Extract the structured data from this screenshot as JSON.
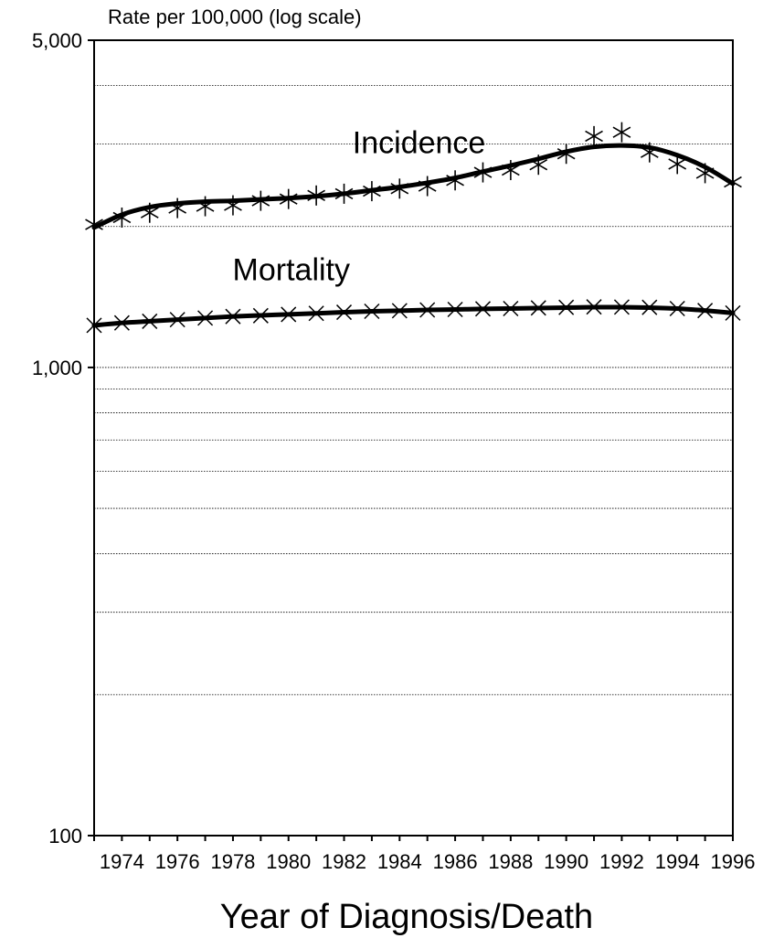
{
  "chart_data": {
    "type": "line",
    "ylabel": "Rate per 100,000 (log scale)",
    "xlabel": "Year of Diagnosis/Death",
    "y_scale": "log",
    "ylim": [
      100,
      5000
    ],
    "xlim": [
      1973,
      1996
    ],
    "y_tick_values": [
      100,
      1000,
      5000
    ],
    "y_tick_labels": [
      "100",
      "1,000",
      "5,000"
    ],
    "gridlines_y": [
      200,
      300,
      400,
      500,
      600,
      700,
      800,
      900,
      1000,
      2000,
      3000,
      4000
    ],
    "x_tick_labels": [
      "1974",
      "1976",
      "1978",
      "1980",
      "1982",
      "1984",
      "1986",
      "1988",
      "1990",
      "1992",
      "1994",
      "1996"
    ],
    "x": [
      1973,
      1974,
      1975,
      1976,
      1977,
      1978,
      1979,
      1980,
      1981,
      1982,
      1983,
      1984,
      1985,
      1986,
      1987,
      1988,
      1989,
      1990,
      1991,
      1992,
      1993,
      1994,
      1995,
      1996
    ],
    "series": [
      {
        "name": "Incidence",
        "marker": "asterisk",
        "values": [
          2020,
          2090,
          2140,
          2190,
          2210,
          2220,
          2270,
          2290,
          2330,
          2350,
          2380,
          2410,
          2440,
          2510,
          2610,
          2640,
          2710,
          2860,
          3120,
          3180,
          2880,
          2720,
          2600,
          2490
        ],
        "trend": [
          1990,
          2120,
          2200,
          2240,
          2260,
          2270,
          2285,
          2300,
          2320,
          2350,
          2390,
          2430,
          2480,
          2540,
          2620,
          2700,
          2790,
          2890,
          2960,
          2980,
          2950,
          2840,
          2680,
          2470
        ]
      },
      {
        "name": "Mortality",
        "marker": "x",
        "values": [
          1230,
          1245,
          1255,
          1265,
          1275,
          1285,
          1290,
          1298,
          1305,
          1312,
          1318,
          1322,
          1327,
          1330,
          1334,
          1336,
          1340,
          1344,
          1347,
          1346,
          1344,
          1336,
          1323,
          1307
        ],
        "trend": [
          1230,
          1245,
          1255,
          1265,
          1275,
          1285,
          1292,
          1298,
          1305,
          1312,
          1318,
          1322,
          1327,
          1330,
          1334,
          1336,
          1339,
          1342,
          1345,
          1345,
          1342,
          1336,
          1323,
          1307
        ]
      }
    ],
    "grid": true,
    "legend": "inline-labels"
  }
}
